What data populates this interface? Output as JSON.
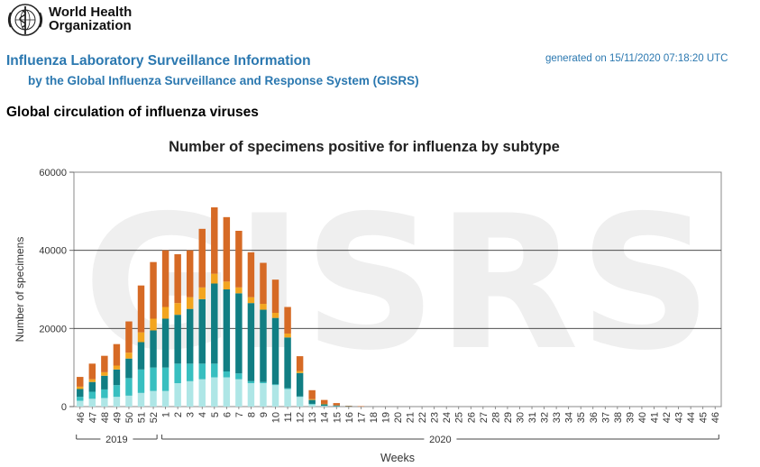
{
  "header": {
    "org_line1": "World Health",
    "org_line2": "Organization",
    "title": "Influenza Laboratory Surveillance Information",
    "subtitle": "by the Global Influenza Surveillance and Response System (GISRS)",
    "generated": "generated on 15/11/2020 07:18:20 UTC",
    "section_title": "Global circulation of influenza viruses"
  },
  "colors": {
    "seg1": "#aee6e6",
    "seg2": "#38bfc0",
    "seg3": "#117e83",
    "seg4": "#f3a51f",
    "seg5": "#d66a25",
    "header_text": "#2b78b0",
    "watermark": "#efefef"
  },
  "chart_data": {
    "type": "bar",
    "stacked": true,
    "title": "Number of specimens positive for influenza by subtype",
    "xlabel": "Weeks",
    "ylabel": "Number of specimens",
    "ylim": [
      0,
      60000
    ],
    "yticks": [
      "0",
      "20000",
      "40000",
      "60000"
    ],
    "watermark": "GISRS",
    "categories": [
      "46",
      "47",
      "48",
      "49",
      "50",
      "51",
      "52",
      "1",
      "2",
      "3",
      "4",
      "5",
      "6",
      "7",
      "8",
      "9",
      "10",
      "11",
      "12",
      "13",
      "14",
      "15",
      "16",
      "17",
      "18",
      "19",
      "20",
      "21",
      "22",
      "23",
      "24",
      "25",
      "26",
      "27",
      "28",
      "29",
      "30",
      "31",
      "32",
      "33",
      "34",
      "35",
      "36",
      "37",
      "38",
      "39",
      "40",
      "41",
      "42",
      "43",
      "44",
      "45",
      "46"
    ],
    "year_groups": [
      {
        "label": "2019",
        "from_index": 0,
        "to_index": 6
      },
      {
        "label": "2020",
        "from_index": 7,
        "to_index": 52
      }
    ],
    "series": [
      {
        "values": [
          1500,
          2000,
          2200,
          2500,
          2800,
          3500,
          4000,
          4000,
          6000,
          6500,
          7000,
          7500,
          7500,
          7000,
          6000,
          6000,
          5500,
          4500,
          2500,
          600,
          200,
          100,
          0,
          0,
          0,
          0,
          0,
          0,
          0,
          0,
          0,
          0,
          0,
          0,
          0,
          0,
          0,
          0,
          0,
          0,
          0,
          0,
          0,
          0,
          0,
          0,
          0,
          0,
          0,
          0,
          0,
          0,
          0
        ]
      },
      {
        "values": [
          1000,
          1800,
          2200,
          3000,
          4500,
          6000,
          6000,
          6000,
          5000,
          4500,
          4000,
          3500,
          1500,
          1500,
          500,
          300,
          200,
          200,
          100,
          100,
          0,
          0,
          0,
          0,
          0,
          0,
          0,
          0,
          0,
          0,
          0,
          0,
          0,
          0,
          0,
          0,
          0,
          0,
          0,
          0,
          0,
          0,
          0,
          0,
          0,
          0,
          0,
          0,
          0,
          0,
          0,
          0,
          0
        ]
      },
      {
        "values": [
          2000,
          2500,
          3500,
          4000,
          5000,
          7000,
          9500,
          12500,
          12500,
          14000,
          16500,
          20500,
          21000,
          20500,
          20000,
          18500,
          17000,
          13000,
          6000,
          1000,
          400,
          200,
          100,
          0,
          0,
          0,
          0,
          0,
          0,
          0,
          0,
          0,
          0,
          0,
          0,
          0,
          0,
          0,
          0,
          0,
          0,
          0,
          0,
          0,
          0,
          0,
          0,
          0,
          0,
          0,
          0,
          0,
          0
        ]
      },
      {
        "values": [
          600,
          700,
          900,
          1000,
          1500,
          2500,
          3000,
          3000,
          3000,
          3000,
          3000,
          2500,
          2000,
          1500,
          1500,
          1500,
          1300,
          1000,
          500,
          200,
          100,
          0,
          0,
          0,
          0,
          0,
          0,
          0,
          0,
          0,
          0,
          0,
          0,
          0,
          0,
          0,
          0,
          0,
          0,
          0,
          0,
          0,
          0,
          0,
          0,
          0,
          0,
          0,
          0,
          0,
          0,
          0,
          0
        ]
      },
      {
        "values": [
          2500,
          4000,
          4200,
          5500,
          8000,
          12000,
          14500,
          14500,
          12500,
          12000,
          15000,
          17000,
          16500,
          14500,
          11500,
          10500,
          8500,
          6800,
          3800,
          2300,
          1000,
          600,
          100,
          100,
          0,
          0,
          0,
          0,
          0,
          0,
          0,
          0,
          0,
          0,
          0,
          0,
          0,
          0,
          0,
          0,
          0,
          0,
          0,
          0,
          0,
          0,
          0,
          0,
          0,
          0,
          0,
          0,
          0
        ]
      }
    ]
  }
}
